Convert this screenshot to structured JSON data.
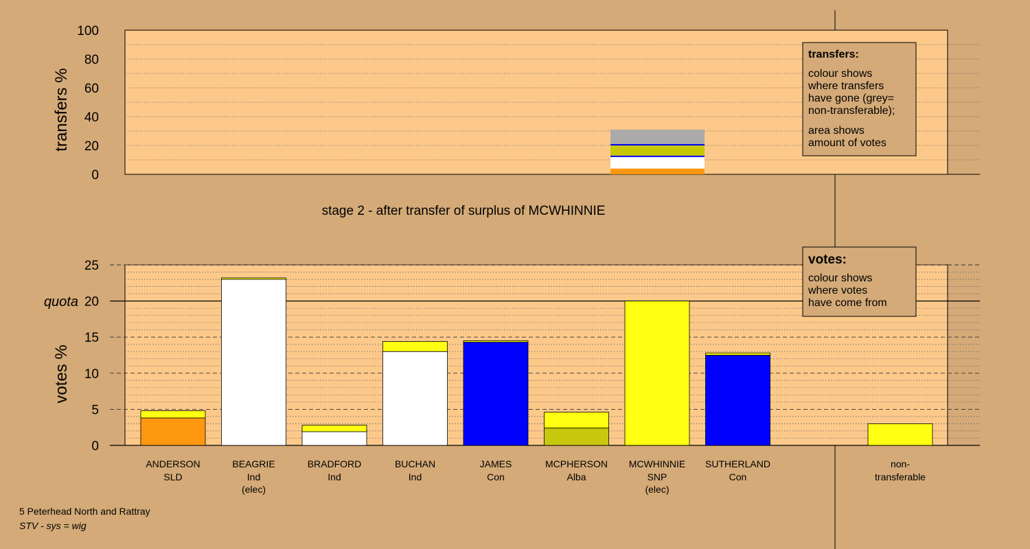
{
  "chart_data": [
    {
      "type": "bar",
      "ylabel": "transfers %",
      "ylim": [
        0,
        100
      ],
      "yticks": [
        0,
        20,
        40,
        60,
        80,
        100
      ],
      "caption": "stage 2 - after transfer of surplus of MCWHINNIE",
      "bar": {
        "candidate": "MCWHINNIE",
        "segments": [
          {
            "colour": "#ff9811",
            "value": 4
          },
          {
            "colour": "#ffffff",
            "value": 8
          },
          {
            "colour": "#0000ff",
            "value": 1
          },
          {
            "colour": "#c8c800",
            "value": 7
          },
          {
            "colour": "#0000ff",
            "value": 1
          },
          {
            "colour": "#aaaaaa",
            "value": 10
          }
        ]
      },
      "legend": {
        "title": "transfers:",
        "lines1": [
          "colour shows",
          "where transfers",
          "have gone (grey=",
          "non-transferable);"
        ],
        "lines2": [
          "area shows",
          "amount of votes"
        ]
      }
    },
    {
      "type": "bar",
      "ylabel": "votes %",
      "ylim": [
        0,
        25
      ],
      "yticks": [
        0,
        5,
        10,
        15,
        20,
        25
      ],
      "quota": {
        "label": "quota",
        "value": 20
      },
      "categories": [
        {
          "name": "ANDERSON",
          "party": "SLD",
          "note": "",
          "segments": [
            {
              "colour": "#ff9811",
              "value": 3.8
            },
            {
              "colour": "#ffff11",
              "value": 1.0
            }
          ]
        },
        {
          "name": "BEAGRIE",
          "party": "Ind",
          "note": "(elec)",
          "segments": [
            {
              "colour": "#ffffff",
              "value": 23.0
            },
            {
              "colour": "#ffff11",
              "value": 0.2
            }
          ]
        },
        {
          "name": "BRADFORD",
          "party": "Ind",
          "note": "",
          "segments": [
            {
              "colour": "#ffffff",
              "value": 1.9
            },
            {
              "colour": "#ffff11",
              "value": 0.9
            }
          ]
        },
        {
          "name": "BUCHAN",
          "party": "Ind",
          "note": "",
          "segments": [
            {
              "colour": "#ffffff",
              "value": 13.0
            },
            {
              "colour": "#ffff11",
              "value": 1.4
            }
          ]
        },
        {
          "name": "JAMES",
          "party": "Con",
          "note": "",
          "segments": [
            {
              "colour": "#0000ff",
              "value": 14.3
            },
            {
              "colour": "#ffff11",
              "value": 0.2
            }
          ]
        },
        {
          "name": "MCPHERSON",
          "party": "Alba",
          "note": "",
          "segments": [
            {
              "colour": "#c8c80f",
              "value": 2.4
            },
            {
              "colour": "#ffff11",
              "value": 2.2
            }
          ]
        },
        {
          "name": "MCWHINNIE",
          "party": "SNP",
          "note": "(elec)",
          "segments": [
            {
              "colour": "#ffff11",
              "value": 20.0
            }
          ]
        },
        {
          "name": "SUTHERLAND",
          "party": "Con",
          "note": "",
          "segments": [
            {
              "colour": "#0000ff",
              "value": 12.5
            },
            {
              "colour": "#ffff11",
              "value": 0.3
            }
          ]
        }
      ],
      "nontransferable": {
        "line1": "non-",
        "line2": "transferable",
        "segments": [
          {
            "colour": "#ffff11",
            "value": 3.0
          }
        ]
      },
      "legend": {
        "title": "votes:",
        "lines": [
          "colour shows",
          "where votes",
          "have come from"
        ]
      }
    }
  ],
  "footer": {
    "line1": "5 Peterhead North and Rattray",
    "line2": "STV - sys = wig"
  }
}
